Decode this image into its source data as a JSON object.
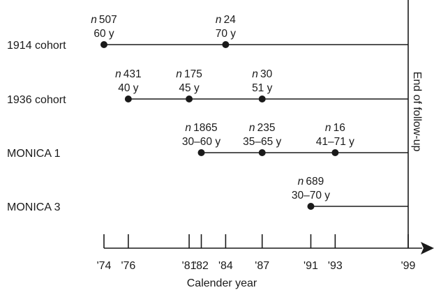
{
  "colors": {
    "ink": "#1a1a1a",
    "background": "#ffffff"
  },
  "axis": {
    "title": "Calender year",
    "ticks": [
      "'74",
      "'76",
      "'81",
      "'82",
      "'84",
      "'87",
      "'91",
      "'93",
      "'99"
    ],
    "tick_years": [
      1974,
      1976,
      1981,
      1982,
      1984,
      1987,
      1991,
      1993,
      1999
    ]
  },
  "end_label": "End of follow-up",
  "end_year": 1999,
  "cohorts": [
    {
      "name": "1914 cohort",
      "points": [
        {
          "year": 1974,
          "n_prefix": "n",
          "n_value": "507",
          "age": "60 y"
        },
        {
          "year": 1984,
          "n_prefix": "n",
          "n_value": "24",
          "age": "70 y"
        }
      ]
    },
    {
      "name": "1936 cohort",
      "points": [
        {
          "year": 1976,
          "n_prefix": "n",
          "n_value": "431",
          "age": "40 y"
        },
        {
          "year": 1981,
          "n_prefix": "n",
          "n_value": "175",
          "age": "45 y"
        },
        {
          "year": 1987,
          "n_prefix": "n",
          "n_value": "30",
          "age": "51 y"
        }
      ]
    },
    {
      "name": "MONICA 1",
      "points": [
        {
          "year": 1982,
          "n_prefix": "n",
          "n_value": "1865",
          "age": "30–60 y"
        },
        {
          "year": 1987,
          "n_prefix": "n",
          "n_value": "235",
          "age": "35–65 y"
        },
        {
          "year": 1993,
          "n_prefix": "n",
          "n_value": "16",
          "age": "41–71 y"
        }
      ]
    },
    {
      "name": "MONICA 3",
      "points": [
        {
          "year": 1991,
          "n_prefix": "n",
          "n_value": "689",
          "age": "30–70 y"
        }
      ]
    }
  ]
}
